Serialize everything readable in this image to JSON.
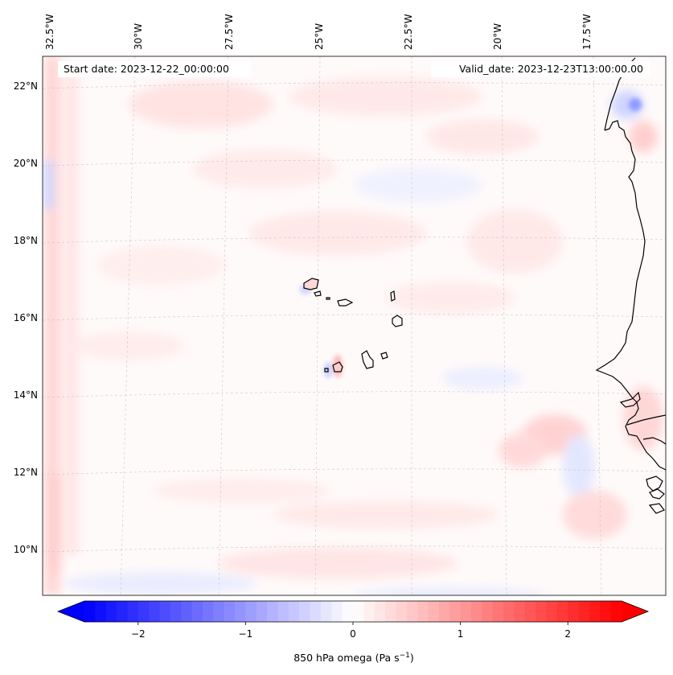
{
  "map": {
    "start_date_label": "Start date: 2023-12-22_00:00:00",
    "valid_date_label": "Valid_date: 2023-12-23T13:00:00.00",
    "lon_labels": [
      "32.5°W",
      "30°W",
      "27.5°W",
      "25°W",
      "22.5°W",
      "20°W",
      "17.5°W"
    ],
    "lat_labels": [
      "22°N",
      "20°N",
      "18°N",
      "16°N",
      "14°N",
      "12°N",
      "10°N"
    ],
    "colorbar": {
      "ticks": [
        "−2",
        "−1",
        "0",
        "1",
        "2"
      ],
      "tick_values": [
        -2,
        -1,
        0,
        1,
        2
      ],
      "range": [
        -2.5,
        2.5
      ],
      "label_main": "850 hPa omega (Pa s",
      "label_sup": "−1",
      "label_close": ")",
      "colormap": "bwr",
      "low_color": "#0000ff",
      "mid_color": "#ffffff",
      "high_color": "#ff0000"
    },
    "coast_color": "#000000",
    "grid_color": "#c8c8c8"
  }
}
